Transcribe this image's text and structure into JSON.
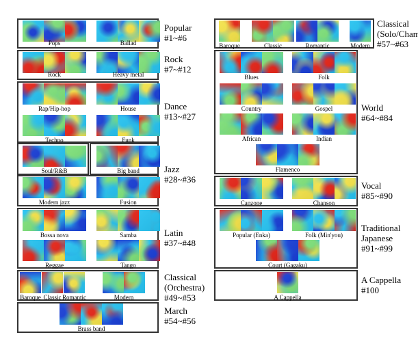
{
  "colors": {
    "blue": "#1a3fd6",
    "cyan": "#27c2f0",
    "green": "#7ee07a",
    "yellow": "#f4e34a",
    "red": "#e6261a"
  },
  "categories": [
    {
      "key": "popular",
      "lines": [
        "Popular",
        "#1~#6"
      ]
    },
    {
      "key": "rock",
      "lines": [
        "Rock",
        "#7~#12"
      ]
    },
    {
      "key": "dance",
      "lines": [
        "Dance",
        "#13~#27"
      ]
    },
    {
      "key": "jazz",
      "lines": [
        "Jazz",
        "#28~#36"
      ]
    },
    {
      "key": "latin",
      "lines": [
        "Latin",
        "#37~#48"
      ]
    },
    {
      "key": "classical-orchestra",
      "lines": [
        "Classical",
        "(Orchestra)",
        "#49~#53"
      ]
    },
    {
      "key": "march",
      "lines": [
        "March",
        "#54~#56"
      ]
    },
    {
      "key": "classical-solo",
      "lines": [
        "Classical",
        "(Solo/Chamber)",
        "#57~#63"
      ]
    },
    {
      "key": "world",
      "lines": [
        "World",
        "#64~#84"
      ]
    },
    {
      "key": "vocal",
      "lines": [
        "Vocal",
        "#85~#90"
      ]
    },
    {
      "key": "traditional-japanese",
      "lines": [
        "Traditional",
        "Japanese",
        "#91~#99"
      ]
    },
    {
      "key": "a-cappella",
      "lines": [
        "A Cappella",
        "#100"
      ]
    }
  ],
  "groups": [
    {
      "key": "pops",
      "label": "Pops"
    },
    {
      "key": "ballad",
      "label": "Ballad"
    },
    {
      "key": "rock",
      "label": "Rock"
    },
    {
      "key": "heavy-metal",
      "label": "Heavy metal"
    },
    {
      "key": "rap-hip-hop",
      "label": "Rap/Hip-hop"
    },
    {
      "key": "house",
      "label": "House"
    },
    {
      "key": "techno",
      "label": "Techno"
    },
    {
      "key": "funk",
      "label": "Funk"
    },
    {
      "key": "soul-rnb",
      "label": "Soul/R&B"
    },
    {
      "key": "big-band",
      "label": "Big band"
    },
    {
      "key": "modern-jazz",
      "label": "Modern jazz"
    },
    {
      "key": "fusion",
      "label": "Fusion"
    },
    {
      "key": "bossa-nova",
      "label": "Bossa nova"
    },
    {
      "key": "samba",
      "label": "Samba"
    },
    {
      "key": "reggae",
      "label": "Reggae"
    },
    {
      "key": "tango",
      "label": "Tango"
    },
    {
      "key": "orch-baroque",
      "label": "Baroque"
    },
    {
      "key": "orch-classic",
      "label": "Classic"
    },
    {
      "key": "orch-romantic",
      "label": "Romantic"
    },
    {
      "key": "orch-modern",
      "label": "Modern"
    },
    {
      "key": "brass-band",
      "label": "Brass band"
    },
    {
      "key": "solo-baroque",
      "label": "Baroque"
    },
    {
      "key": "solo-classic",
      "label": "Classic"
    },
    {
      "key": "solo-romantic",
      "label": "Romantic"
    },
    {
      "key": "solo-modern",
      "label": "Modern"
    },
    {
      "key": "blues",
      "label": "Blues"
    },
    {
      "key": "folk",
      "label": "Folk"
    },
    {
      "key": "country",
      "label": "Country"
    },
    {
      "key": "gospel",
      "label": "Gospel"
    },
    {
      "key": "african",
      "label": "African"
    },
    {
      "key": "indian",
      "label": "Indian"
    },
    {
      "key": "flamenco",
      "label": "Flamenco"
    },
    {
      "key": "canzone",
      "label": "Canzone"
    },
    {
      "key": "chanson",
      "label": "Chanson"
    },
    {
      "key": "popular-enka",
      "label": "Popular (Enka)"
    },
    {
      "key": "folk-minyou",
      "label": "Folk (Min'you)"
    },
    {
      "key": "court-gagaku",
      "label": "Court (Gagaku)"
    },
    {
      "key": "a-cappella",
      "label": "A Cappella"
    }
  ]
}
